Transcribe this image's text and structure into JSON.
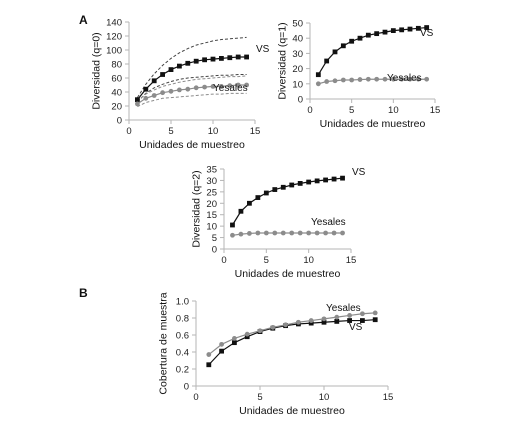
{
  "figure": {
    "panel_a": "A",
    "panel_b": "B"
  },
  "colors": {
    "vs": "#111111",
    "yesales": "#8c8c8c",
    "ci": "#444444",
    "ci_yesales": "#8c8c8c",
    "axis": "#b5b5b5"
  },
  "chart_data": [
    {
      "id": "q0",
      "type": "line",
      "xlabel": "Unidades de muestreo",
      "ylabel": "Diversidad (q=0)",
      "xlim": [
        0,
        15
      ],
      "ylim": [
        0,
        140
      ],
      "xticks": [
        0,
        5,
        10,
        15
      ],
      "yticks": [
        0,
        20,
        40,
        60,
        80,
        100,
        120,
        140
      ],
      "x": [
        1,
        2,
        3,
        4,
        5,
        6,
        7,
        8,
        9,
        10,
        11,
        12,
        13,
        14
      ],
      "series": [
        {
          "name": "VS",
          "color": "#111111",
          "marker": "square",
          "values": [
            29,
            44,
            56,
            65,
            72,
            77,
            81,
            84,
            86,
            87,
            88,
            89,
            90,
            90
          ]
        },
        {
          "name": "Yesales",
          "color": "#8c8c8c",
          "marker": "circle",
          "values": [
            23,
            31,
            35,
            39,
            41,
            43,
            44,
            46,
            47,
            48,
            48,
            49,
            50,
            50
          ]
        }
      ],
      "intervals": [
        {
          "of": "VS",
          "color": "#444444",
          "lower": [
            26,
            38,
            46,
            51,
            55,
            58,
            60,
            61,
            62,
            63,
            64,
            64,
            65,
            65
          ],
          "upper": [
            32,
            51,
            66,
            78,
            88,
            96,
            102,
            107,
            110,
            113,
            115,
            116,
            117,
            118
          ]
        },
        {
          "of": "Yesales",
          "color": "#8c8c8c",
          "lower": [
            19,
            25,
            28,
            31,
            32,
            33,
            34,
            35,
            36,
            37,
            37,
            38,
            38,
            38
          ],
          "upper": [
            27,
            37,
            43,
            48,
            51,
            54,
            56,
            58,
            59,
            60,
            61,
            62,
            62,
            63
          ]
        }
      ],
      "annotations": [
        "VS",
        "Yesales"
      ]
    },
    {
      "id": "q1",
      "type": "line",
      "xlabel": "Unidades de muestreo",
      "ylabel": "Diversidad (q=1)",
      "xlim": [
        0,
        15
      ],
      "ylim": [
        0,
        50
      ],
      "xticks": [
        0,
        5,
        10,
        15
      ],
      "yticks": [
        0,
        10,
        20,
        30,
        40,
        50
      ],
      "x": [
        1,
        2,
        3,
        4,
        5,
        6,
        7,
        8,
        9,
        10,
        11,
        12,
        13,
        14
      ],
      "series": [
        {
          "name": "VS",
          "color": "#111111",
          "marker": "square",
          "values": [
            16,
            25,
            31,
            35,
            38,
            40,
            42,
            43,
            44,
            45,
            45.5,
            46,
            46.5,
            47
          ]
        },
        {
          "name": "Yesales",
          "color": "#8c8c8c",
          "marker": "circle",
          "values": [
            10,
            11.5,
            12,
            12.5,
            12.5,
            12.8,
            13,
            13,
            13,
            13,
            13,
            13,
            13,
            13
          ]
        }
      ],
      "annotations": [
        "VS",
        "Yesales"
      ]
    },
    {
      "id": "q2",
      "type": "line",
      "xlabel": "Unidades de muestreo",
      "ylabel": "Diversidad (q=2)",
      "xlim": [
        0,
        15
      ],
      "ylim": [
        0,
        35
      ],
      "xticks": [
        0,
        5,
        10,
        15
      ],
      "yticks": [
        0,
        5,
        10,
        15,
        20,
        25,
        30,
        35
      ],
      "x": [
        1,
        2,
        3,
        4,
        5,
        6,
        7,
        8,
        9,
        10,
        11,
        12,
        13,
        14
      ],
      "series": [
        {
          "name": "VS",
          "color": "#111111",
          "marker": "square",
          "values": [
            10.5,
            16.5,
            20,
            22.5,
            24.5,
            26,
            27,
            28,
            28.7,
            29.3,
            29.8,
            30.2,
            30.6,
            31
          ]
        },
        {
          "name": "Yesales",
          "color": "#8c8c8c",
          "marker": "circle",
          "values": [
            6,
            6.5,
            6.8,
            7,
            7,
            7,
            7,
            7,
            7,
            7,
            7,
            7,
            7,
            7
          ]
        }
      ],
      "annotations": [
        "VS",
        "Yesales"
      ]
    },
    {
      "id": "coverage",
      "type": "line",
      "xlabel": "Unidades de muestreo",
      "ylabel": "Cobertura de muestra",
      "xlim": [
        0,
        15
      ],
      "ylim": [
        0,
        1.0
      ],
      "xticks": [
        0,
        5,
        10,
        15
      ],
      "yticks": [
        0,
        0.2,
        0.4,
        0.6,
        0.8,
        1.0
      ],
      "ytick_labels": [
        "0",
        "0.2",
        "0.4",
        "0.6",
        "0.8",
        "1.0"
      ],
      "x": [
        1,
        2,
        3,
        4,
        5,
        6,
        7,
        8,
        9,
        10,
        11,
        12,
        13,
        14
      ],
      "series": [
        {
          "name": "VS",
          "color": "#111111",
          "marker": "square",
          "values": [
            0.25,
            0.41,
            0.51,
            0.58,
            0.64,
            0.68,
            0.71,
            0.73,
            0.74,
            0.75,
            0.76,
            0.77,
            0.77,
            0.78
          ]
        },
        {
          "name": "Yesales",
          "color": "#8c8c8c",
          "marker": "circle",
          "values": [
            0.37,
            0.49,
            0.56,
            0.61,
            0.65,
            0.69,
            0.72,
            0.75,
            0.77,
            0.79,
            0.81,
            0.83,
            0.85,
            0.86
          ]
        }
      ],
      "annotations": [
        "Yesales",
        "VS"
      ]
    }
  ]
}
